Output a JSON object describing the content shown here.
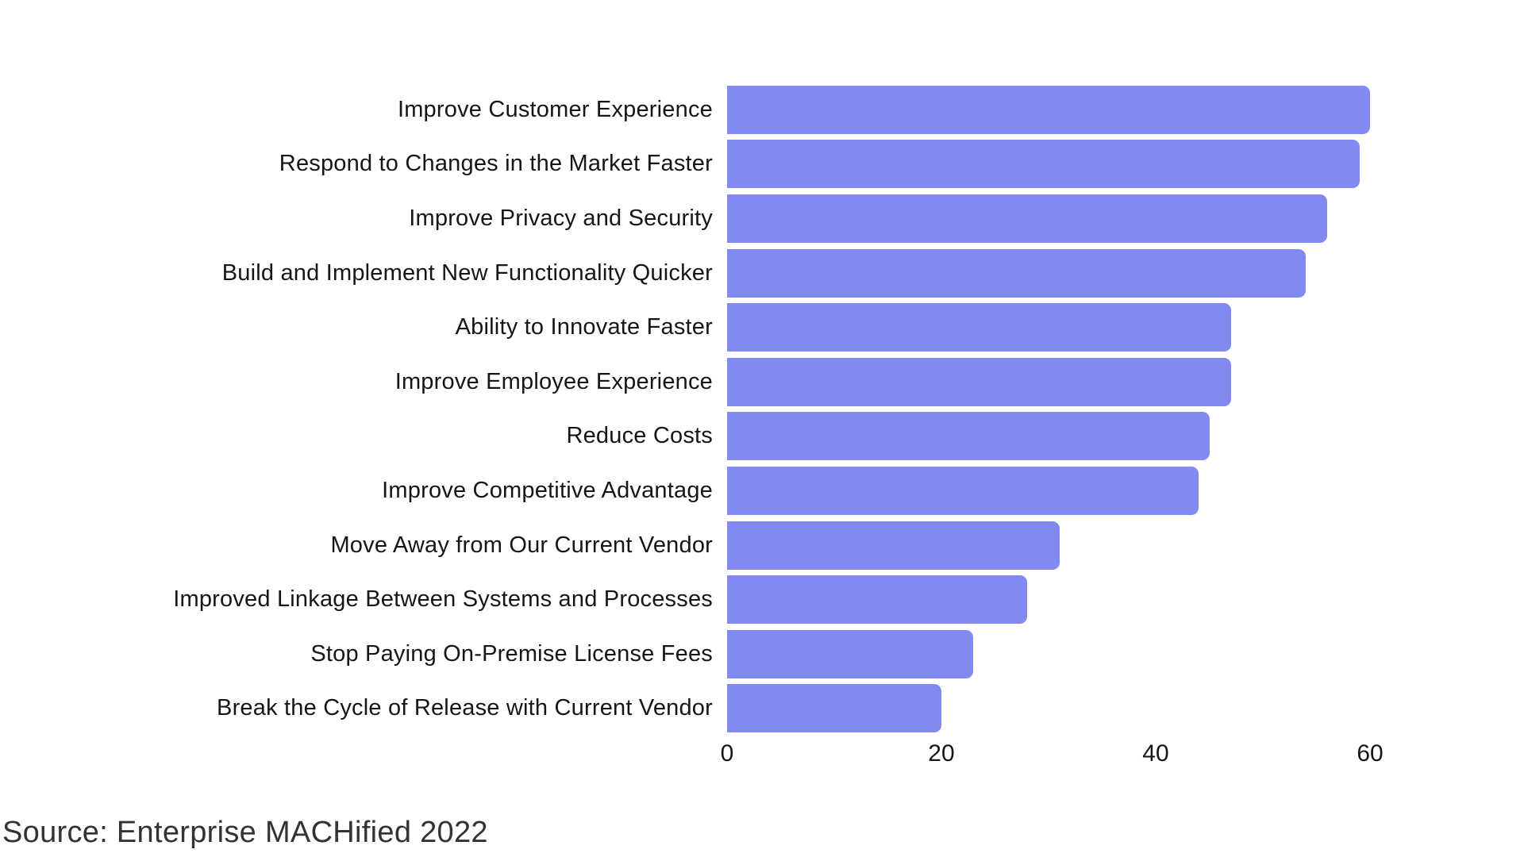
{
  "chart_data": {
    "type": "bar",
    "orientation": "horizontal",
    "title": "",
    "xlabel": "",
    "ylabel": "",
    "categories": [
      "Improve Customer Experience",
      "Respond to Changes in the Market Faster",
      "Improve Privacy and Security",
      "Build and Implement New Functionality Quicker",
      "Ability to Innovate Faster",
      "Improve Employee Experience",
      "Reduce Costs",
      "Improve Competitive Advantage",
      "Move Away from Our Current Vendor",
      "Improved Linkage Between Systems and Processes",
      "Stop Paying On-Premise License Fees",
      "Break the Cycle of Release with Current Vendor"
    ],
    "values": [
      60,
      59,
      56,
      54,
      47,
      47,
      45,
      44,
      31,
      28,
      23,
      20
    ],
    "xlim": [
      0,
      60
    ],
    "x_ticks": [
      0,
      20,
      40,
      60
    ],
    "grid": false,
    "legend": false,
    "bar_color": "#8289F0",
    "source": "Source: Enterprise MACHified 2022"
  },
  "colors": {
    "background": "#ffffff",
    "bar": "#8289F0",
    "label_text": "#161616",
    "tick_text": "#161616",
    "source_text": "#333333"
  }
}
